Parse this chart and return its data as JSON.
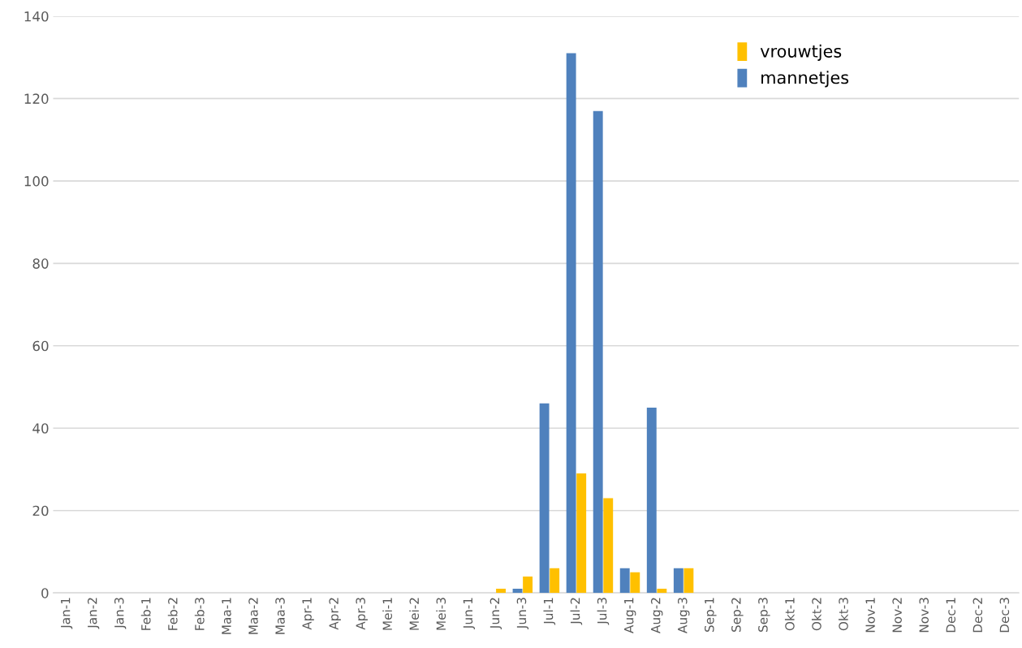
{
  "chart_data": {
    "type": "bar",
    "categories": [
      "Jan-1",
      "Jan-2",
      "Jan-3",
      "Feb-1",
      "Feb-2",
      "Feb-3",
      "Maa-1",
      "Maa-2",
      "Maa-3",
      "Apr-1",
      "Apr-2",
      "Apr-3",
      "Mei-1",
      "Mei-2",
      "Mei-3",
      "Jun-1",
      "Jun-2",
      "Jun-3",
      "Jul-1",
      "Jul-2",
      "Jul-3",
      "Aug-1",
      "Aug-2",
      "Aug-3",
      "Sep-1",
      "Sep-2",
      "Sep-3",
      "Okt-1",
      "Okt-2",
      "Okt-3",
      "Nov-1",
      "Nov-2",
      "Nov-3",
      "Dec-1",
      "Dec-2",
      "Dec-3"
    ],
    "series": [
      {
        "name": "mannetjes",
        "color": "#4f81bd",
        "values": [
          0,
          0,
          0,
          0,
          0,
          0,
          0,
          0,
          0,
          0,
          0,
          0,
          0,
          0,
          0,
          0,
          0,
          1,
          46,
          131,
          117,
          6,
          45,
          6,
          0,
          0,
          0,
          0,
          0,
          0,
          0,
          0,
          0,
          0,
          0,
          0
        ]
      },
      {
        "name": "vrouwtjes",
        "color": "#ffc000",
        "values": [
          0,
          0,
          0,
          0,
          0,
          0,
          0,
          0,
          0,
          0,
          0,
          0,
          0,
          0,
          0,
          0,
          1,
          4,
          6,
          29,
          23,
          5,
          1,
          6,
          0,
          0,
          0,
          0,
          0,
          0,
          0,
          0,
          0,
          0,
          0,
          0
        ]
      }
    ],
    "ylim": [
      0,
      140
    ],
    "yticks": [
      0,
      20,
      40,
      60,
      80,
      100,
      120,
      140
    ],
    "grid": "y",
    "legend": "top right"
  }
}
